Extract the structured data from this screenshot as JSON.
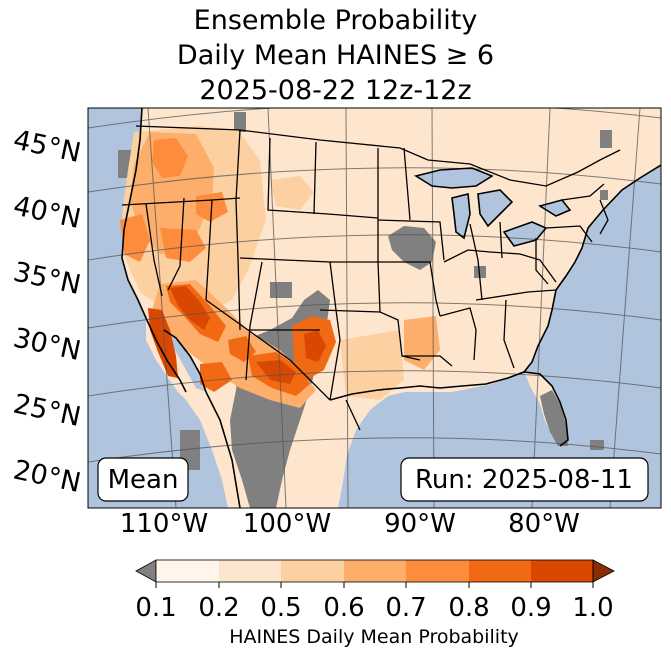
{
  "title": {
    "line1": "Ensemble Probability",
    "line2": "Daily Mean HAINES ≥ 6",
    "line3": "2025-08-22 12z-12z"
  },
  "map": {
    "lat_labels": [
      "45°N",
      "40°N",
      "35°N",
      "30°N",
      "25°N",
      "20°N"
    ],
    "lon_labels": [
      "110°W",
      "100°W",
      "90°W",
      "80°W"
    ],
    "stat_box": "Mean",
    "run_box": "Run: 2025-08-11",
    "colors": {
      "ocean": "#b0c4de",
      "land_low": "#fee6ce",
      "missing": "#808080",
      "lakes": "#b0c4de"
    }
  },
  "colorbar": {
    "ticks": [
      "0.1",
      "0.2",
      "0.5",
      "0.6",
      "0.7",
      "0.8",
      "0.9",
      "1.0"
    ],
    "label": "HAINES Daily Mean Probability",
    "colors": [
      "#808080",
      "#fff5eb",
      "#fee6ce",
      "#fdd0a2",
      "#fdae6b",
      "#fd8d3c",
      "#f16913",
      "#d94801",
      "#8c2d04"
    ]
  }
}
